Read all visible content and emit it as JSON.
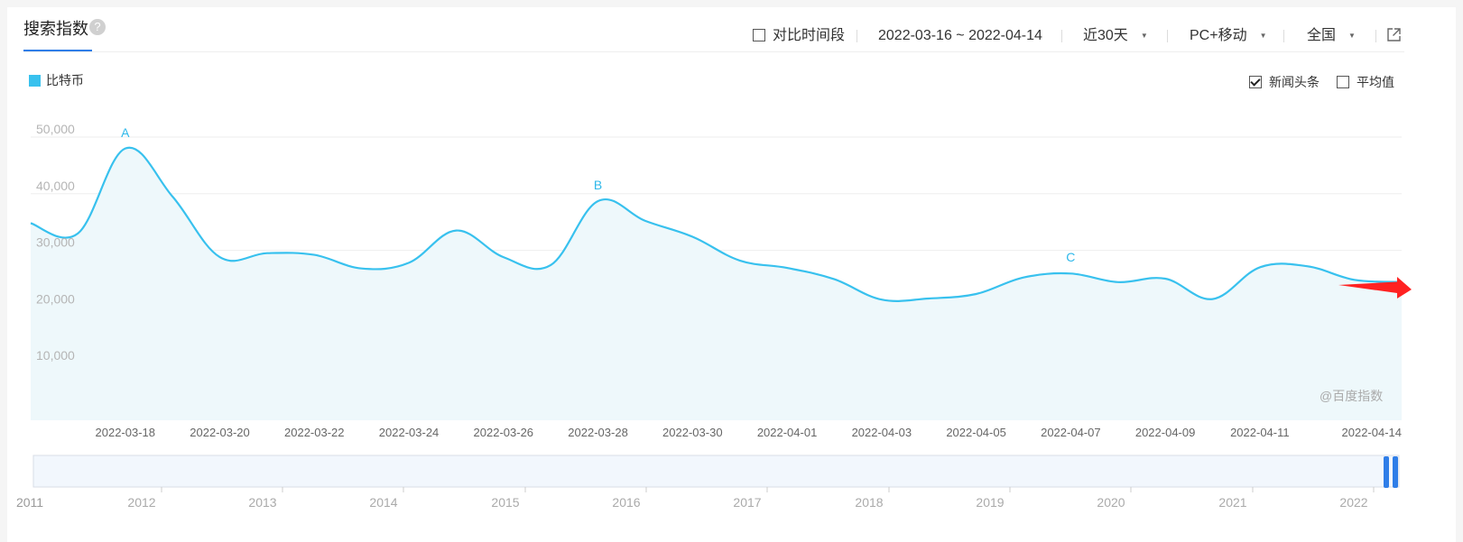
{
  "header": {
    "title": "搜索指数",
    "help_icon": "question-icon",
    "compare_label": "对比时间段",
    "date_range": "2022-03-16 ~ 2022-04-14",
    "period": "近30天",
    "device": "PC+移动",
    "region": "全国",
    "share_icon": "external-link-icon"
  },
  "legend": {
    "series_name": "比特币",
    "color": "#38c1ee"
  },
  "options": {
    "news_label": "新闻头条",
    "news_checked": true,
    "avg_label": "平均值",
    "avg_checked": false
  },
  "watermark": "@百度指数",
  "chart_data": {
    "type": "area",
    "ylim": [
      0,
      50000
    ],
    "yticks": [
      "50,000",
      "40,000",
      "30,000",
      "20,000",
      "10,000"
    ],
    "ytick_values": [
      50000,
      40000,
      30000,
      20000,
      10000
    ],
    "x_tick_labels": [
      "2022-03-18",
      "2022-03-20",
      "2022-03-22",
      "2022-03-24",
      "2022-03-26",
      "2022-03-28",
      "2022-03-30",
      "2022-04-01",
      "2022-04-03",
      "2022-04-05",
      "2022-04-07",
      "2022-04-09",
      "2022-04-11",
      "2022-04-14"
    ],
    "x": [
      "2022-03-16",
      "2022-03-17",
      "2022-03-18",
      "2022-03-19",
      "2022-03-20",
      "2022-03-21",
      "2022-03-22",
      "2022-03-23",
      "2022-03-24",
      "2022-03-25",
      "2022-03-26",
      "2022-03-27",
      "2022-03-28",
      "2022-03-29",
      "2022-03-30",
      "2022-03-31",
      "2022-04-01",
      "2022-04-02",
      "2022-04-03",
      "2022-04-04",
      "2022-04-05",
      "2022-04-06",
      "2022-04-07",
      "2022-04-08",
      "2022-04-09",
      "2022-04-10",
      "2022-04-11",
      "2022-04-12",
      "2022-04-13",
      "2022-04-14"
    ],
    "series": [
      {
        "name": "比特币",
        "color": "#38c1ee",
        "values": [
          34800,
          33000,
          48000,
          39500,
          28800,
          29500,
          29200,
          26800,
          27800,
          33500,
          28800,
          27400,
          38700,
          35200,
          32400,
          28200,
          26900,
          24900,
          21300,
          21500,
          22300,
          25200,
          25900,
          24400,
          25000,
          21400,
          27000,
          27200,
          24800,
          24400
        ]
      }
    ],
    "markers": [
      {
        "label": "A",
        "x": "2022-03-18"
      },
      {
        "label": "B",
        "x": "2022-03-28"
      },
      {
        "label": "C",
        "x": "2022-04-07"
      }
    ],
    "grid": true
  },
  "navigator": {
    "year_labels": [
      "2011",
      "2012",
      "2013",
      "2014",
      "2015",
      "2016",
      "2017",
      "2018",
      "2019",
      "2020",
      "2021",
      "2022"
    ],
    "handle_color": "#2f7ee8"
  }
}
